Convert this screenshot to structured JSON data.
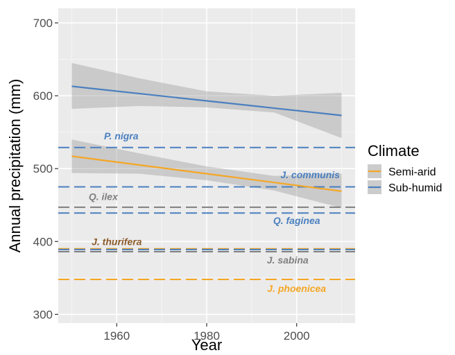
{
  "chart_data": {
    "type": "line",
    "xlabel": "Year",
    "ylabel": "Annual precipitation (mm)",
    "xlim": [
      1947,
      2013
    ],
    "ylim": [
      288,
      720
    ],
    "x_ticks": [
      1960,
      1980,
      2000
    ],
    "y_ticks": [
      300,
      400,
      500,
      600,
      700
    ],
    "grid": true,
    "legend": {
      "title": "Climate",
      "position": "right",
      "entries": [
        {
          "label": "Semi-arid",
          "color": "#f5a623"
        },
        {
          "label": "Sub-humid",
          "color": "#4a7fbf"
        }
      ]
    },
    "series": [
      {
        "name": "Sub-humid",
        "color": "#4a7fbf",
        "x": [
          1950,
          2010
        ],
        "y": [
          613,
          573
        ],
        "ribbon_x": [
          1950,
          1965,
          1980,
          1995,
          2010
        ],
        "ribbon_lower": [
          582,
          586,
          584,
          577,
          542
        ],
        "ribbon_upper": [
          645,
          624,
          606,
          600,
          604
        ]
      },
      {
        "name": "Semi-arid",
        "color": "#f5a623",
        "x": [
          1950,
          2010
        ],
        "y": [
          517,
          469
        ],
        "ribbon_x": [
          1950,
          1965,
          1980,
          1995,
          2010
        ],
        "ribbon_lower": [
          494,
          493,
          484,
          470,
          446
        ],
        "ribbon_upper": [
          540,
          521,
          503,
          490,
          493
        ]
      }
    ],
    "hlines": [
      {
        "label": "P. nigra",
        "y": 529,
        "color": "#4a7fbf",
        "label_color": "#4a7fbf",
        "label_x": 1961,
        "label_y": 540
      },
      {
        "label": "J. communis",
        "y": 475,
        "color": "#4a7fbf",
        "label_color": "#4a7fbf",
        "label_x": 2003,
        "label_y": 487
      },
      {
        "label": "Q. ilex",
        "y": 447,
        "color": "#7f7f7f",
        "label_color": "#7f7f7f",
        "label_x": 1957,
        "label_y": 457
      },
      {
        "label": "Q. faginea",
        "y": 439,
        "color": "#4a7fbf",
        "label_color": "#4a7fbf",
        "label_x": 2000,
        "label_y": 424
      },
      {
        "label": "J. thurifera",
        "y": 390,
        "color": "#f5a623",
        "label_color": "#8b5a2b",
        "label_x": 1960,
        "label_y": 395
      },
      {
        "label": "J. thurifera",
        "y": 389,
        "color": "#4a7fbf",
        "label_color": "#8b5a2b",
        "label_x": null,
        "label_y": null
      },
      {
        "label": "J. sabina",
        "y": 386,
        "color": "#7f7f7f",
        "label_color": "#7f7f7f",
        "label_x": 1998,
        "label_y": 370
      },
      {
        "label": "J. phoenicea",
        "y": 348,
        "color": "#f5a623",
        "label_color": "#f5a623",
        "label_x": 2000,
        "label_y": 331
      }
    ]
  }
}
